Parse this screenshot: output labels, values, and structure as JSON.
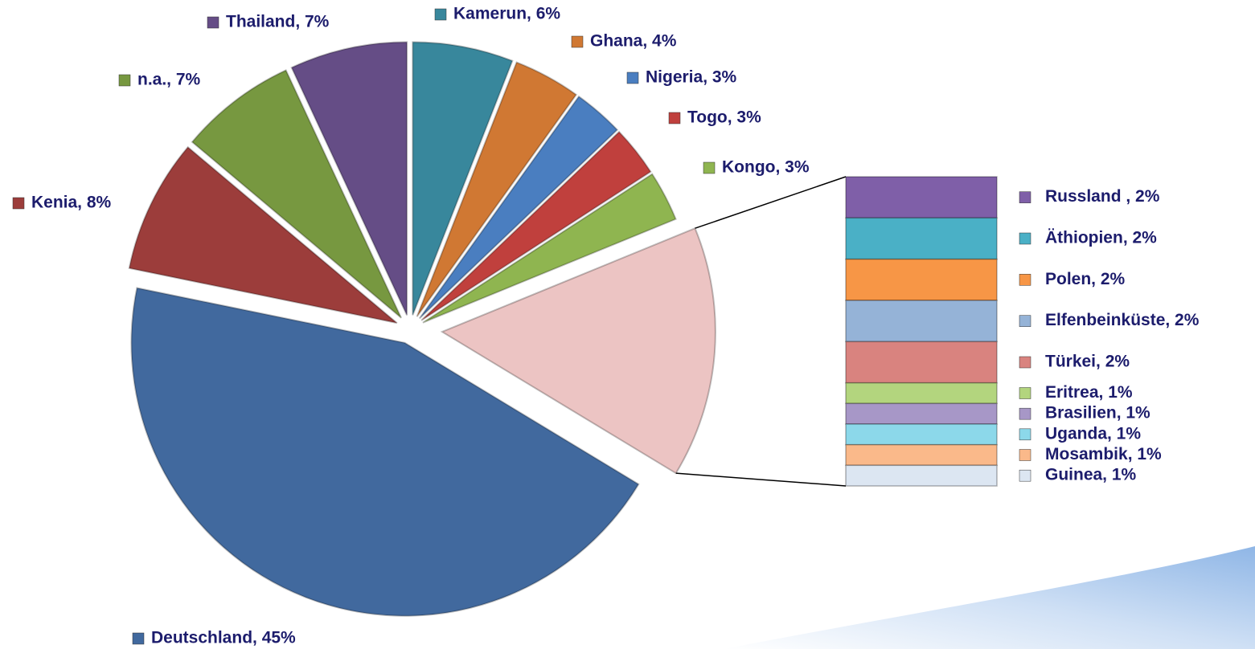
{
  "chart_data": {
    "type": "pie-of-bar",
    "pie": {
      "labels": [
        "Kamerun, 6%",
        "Ghana, 4%",
        "Nigeria, 3%",
        "Togo, 3%",
        "Kongo, 3%",
        "Deutschland, 45%",
        "Kenia, 8%",
        "n.a., 7%",
        "Thailand, 7%"
      ],
      "values": [
        6,
        4,
        3,
        3,
        3,
        45,
        8,
        7,
        7
      ],
      "colors": [
        "#38879c",
        "#d07833",
        "#4a7ec0",
        "#c0403d",
        "#8fb550",
        "#41699e",
        "#9c3d3b",
        "#779840",
        "#654d86"
      ],
      "other_color": "#ecc4c3"
    },
    "bar": {
      "labels": [
        "Russland , 2%",
        "Äthiopien, 2%",
        "Polen, 2%",
        "Elfenbeinküste, 2%",
        "Türkei, 2%",
        "Eritrea, 1%",
        "Brasilien, 1%",
        "Uganda, 1%",
        "Mosambik, 1%",
        "Guinea, 1%"
      ],
      "values": [
        2,
        2,
        2,
        2,
        2,
        1,
        1,
        1,
        1,
        1
      ],
      "colors": [
        "#7f5fa8",
        "#4ab0c6",
        "#f79646",
        "#95b3d7",
        "#d9837f",
        "#b3d57e",
        "#a797c7",
        "#8cd8ea",
        "#fab98a",
        "#dce6f2"
      ]
    }
  }
}
